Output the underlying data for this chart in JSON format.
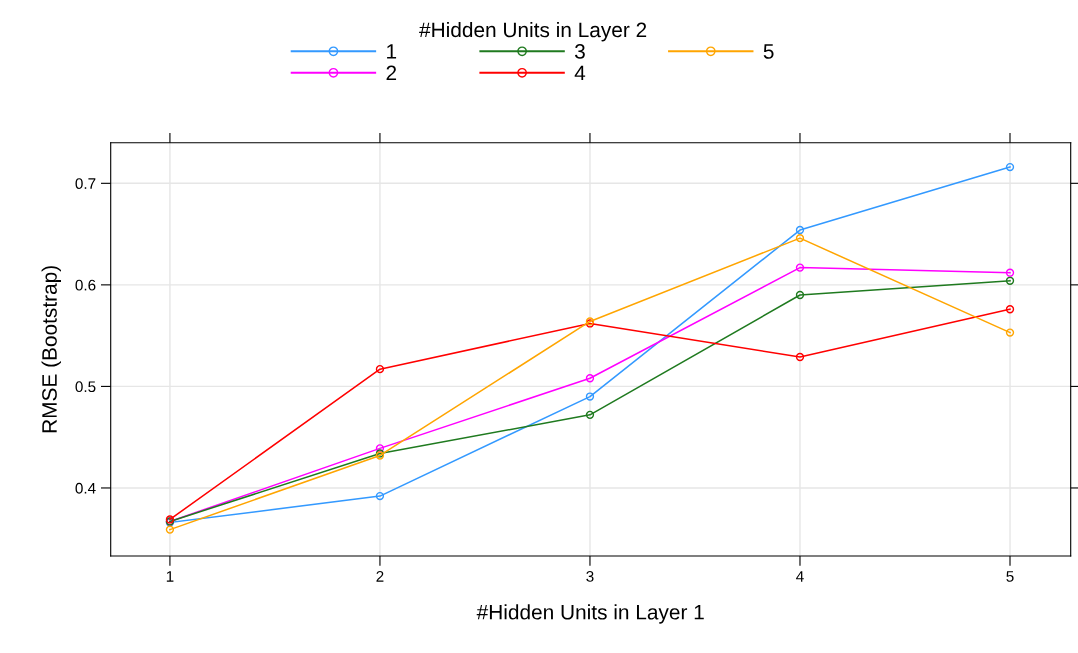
{
  "chart_data": {
    "type": "line",
    "xlabel": "#Hidden Units in Layer 1",
    "ylabel": "RMSE (Bootstrap)",
    "legend_title": "#Hidden Units in Layer 2",
    "x": [
      1,
      2,
      3,
      4,
      5
    ],
    "series": [
      {
        "name": "1",
        "color": "#3399ff",
        "values": [
          0.366,
          0.392,
          0.49,
          0.654,
          0.716
        ]
      },
      {
        "name": "2",
        "color": "#ff00ff",
        "values": [
          0.367,
          0.439,
          0.508,
          0.617,
          0.612
        ]
      },
      {
        "name": "3",
        "color": "#1f7a1f",
        "values": [
          0.367,
          0.434,
          0.472,
          0.59,
          0.604
        ]
      },
      {
        "name": "4",
        "color": "#ff0000",
        "values": [
          0.369,
          0.517,
          0.562,
          0.529,
          0.576
        ]
      },
      {
        "name": "5",
        "color": "#ffa500",
        "values": [
          0.359,
          0.432,
          0.564,
          0.646,
          0.553
        ]
      }
    ],
    "xlim": [
      0.718,
      5.289
    ],
    "ylim": [
      0.333,
      0.74
    ],
    "xticks": [
      1,
      2,
      3,
      4,
      5
    ],
    "yticks": [
      0.4,
      0.5,
      0.6,
      0.7
    ],
    "grid": true,
    "legend": "top",
    "marker": "circle",
    "line_style": "solid"
  }
}
